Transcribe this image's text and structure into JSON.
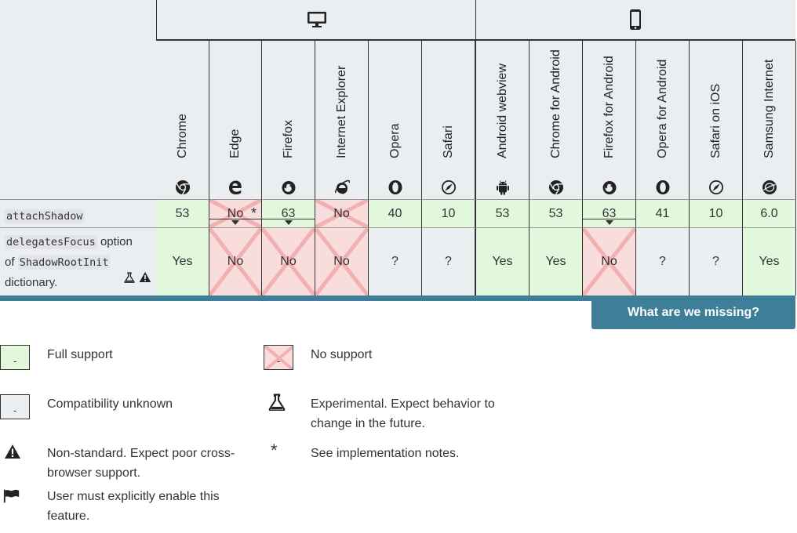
{
  "browsers": [
    {
      "name": "Chrome",
      "icon": "chrome-icon"
    },
    {
      "name": "Edge",
      "icon": "edge-icon"
    },
    {
      "name": "Firefox",
      "icon": "firefox-icon"
    },
    {
      "name": "Internet Explorer",
      "icon": "internet-explorer-icon"
    },
    {
      "name": "Opera",
      "icon": "opera-icon"
    },
    {
      "name": "Safari",
      "icon": "safari-icon"
    },
    {
      "name": "Android webview",
      "icon": "android-icon"
    },
    {
      "name": "Chrome for Android",
      "icon": "chrome-icon"
    },
    {
      "name": "Firefox for Android",
      "icon": "firefox-icon"
    },
    {
      "name": "Opera for Android",
      "icon": "opera-icon"
    },
    {
      "name": "Safari on iOS",
      "icon": "safari-icon"
    },
    {
      "name": "Samsung Internet",
      "icon": "samsung-internet-icon"
    }
  ],
  "platforms": [
    {
      "name": "desktop",
      "icon": "desktop-icon"
    },
    {
      "name": "mobile",
      "icon": "mobile-icon"
    }
  ],
  "rows": [
    {
      "feature_code": "attachShadow",
      "cells": [
        {
          "value": "53",
          "status": "full"
        },
        {
          "value": "No",
          "status": "none",
          "star": true,
          "expand": true
        },
        {
          "value": "63",
          "status": "full",
          "expand": true
        },
        {
          "value": "No",
          "status": "none"
        },
        {
          "value": "40",
          "status": "full"
        },
        {
          "value": "10",
          "status": "full"
        },
        {
          "value": "53",
          "status": "full"
        },
        {
          "value": "53",
          "status": "full"
        },
        {
          "value": "63",
          "status": "full",
          "expand": true
        },
        {
          "value": "41",
          "status": "full"
        },
        {
          "value": "10",
          "status": "full"
        },
        {
          "value": "6.0",
          "status": "full"
        }
      ]
    },
    {
      "feature_code": "delegatesFocus",
      "feature_text1": "option",
      "feature_of": "of",
      "feature_code2": "ShadowRootInit",
      "feature_text2": "dictionary.",
      "cells": [
        {
          "value": "Yes",
          "status": "full"
        },
        {
          "value": "No",
          "status": "none"
        },
        {
          "value": "No",
          "status": "none"
        },
        {
          "value": "No",
          "status": "none"
        },
        {
          "value": "?",
          "status": "unknown"
        },
        {
          "value": "?",
          "status": "unknown"
        },
        {
          "value": "Yes",
          "status": "full"
        },
        {
          "value": "Yes",
          "status": "full"
        },
        {
          "value": "No",
          "status": "none"
        },
        {
          "value": "?",
          "status": "unknown"
        },
        {
          "value": "?",
          "status": "unknown"
        },
        {
          "value": "Yes",
          "status": "full"
        }
      ]
    }
  ],
  "missing_button": "What are we missing?",
  "legend": {
    "full_support": "Full support",
    "no_support": "No support",
    "compat_unknown": "Compatibility unknown",
    "experimental": "Experimental. Expect behavior to change in the future.",
    "non_standard": "Non-standard. Expect poor cross-browser support.",
    "impl_notes": "See implementation notes.",
    "flag": "User must explicitly enable this feature.",
    "swatch_mark": "-"
  },
  "colors": {
    "full": "#e1f8dc",
    "none": "#f9dcdc",
    "unknown": "#eceff1",
    "accent": "#3f7e99"
  }
}
